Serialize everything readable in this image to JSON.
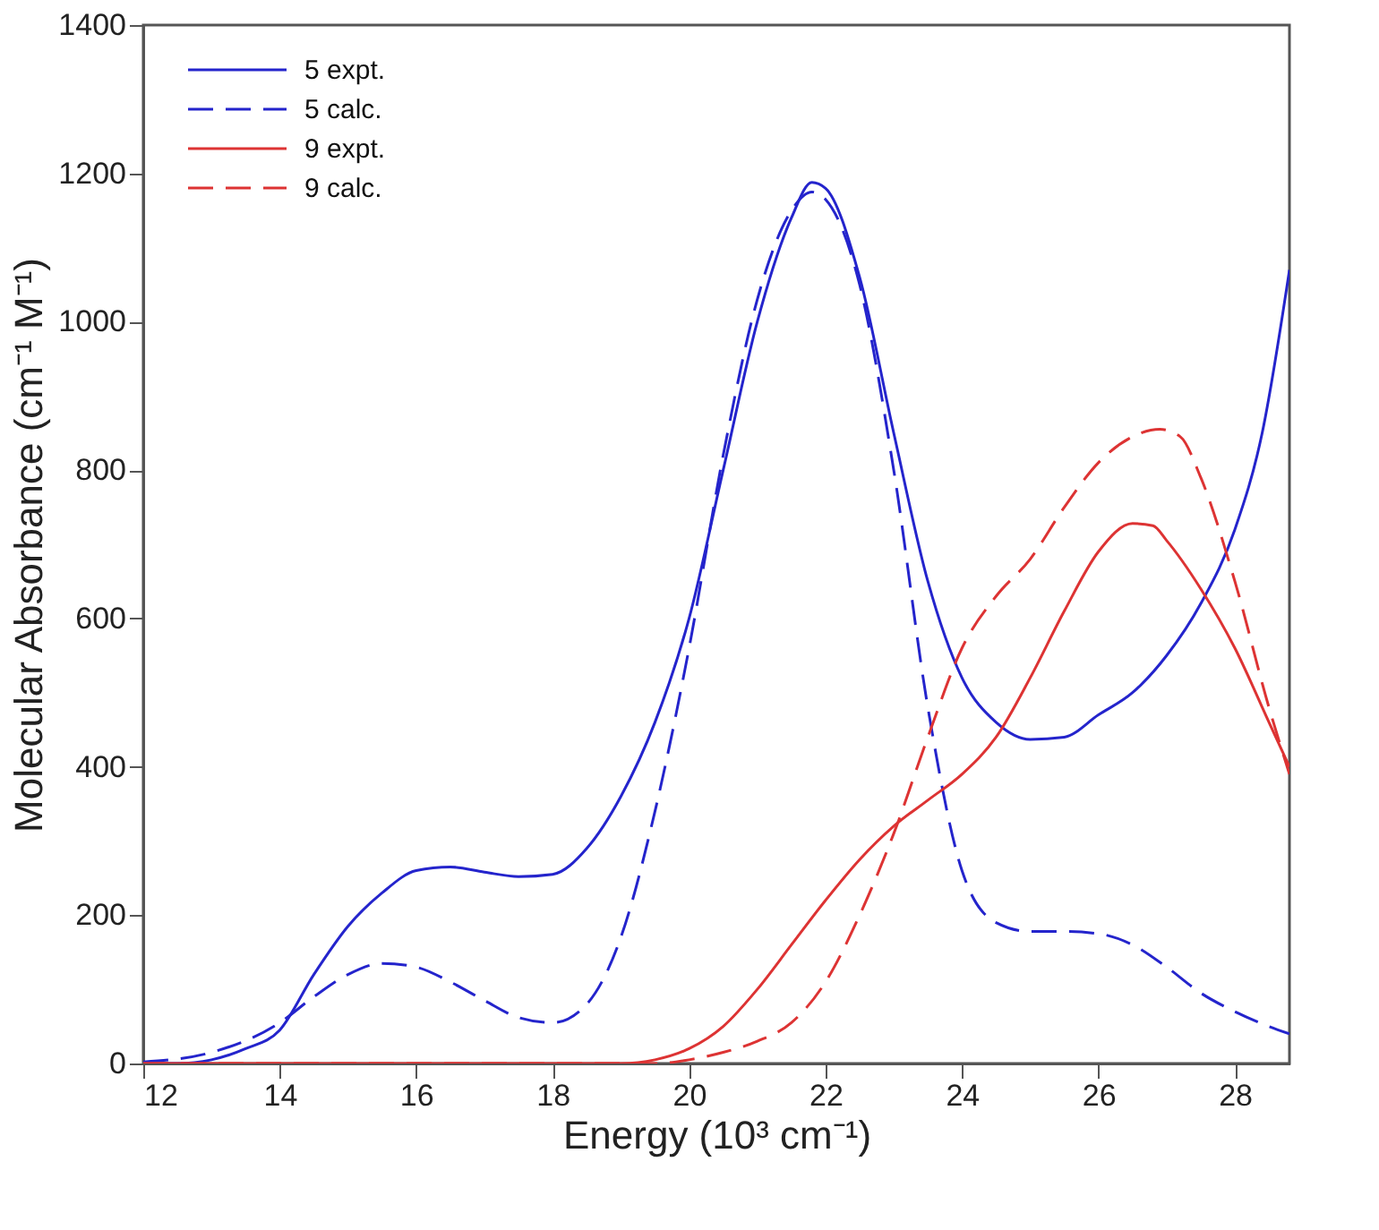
{
  "chart_data": {
    "type": "line",
    "xlabel": "Energy (10³ cm⁻¹)",
    "ylabel": "Molecular Absorbance (cm⁻¹ M⁻¹)",
    "xlim": [
      12,
      28.8
    ],
    "xticks": [
      12,
      14,
      16,
      18,
      20,
      22,
      24,
      26,
      28
    ],
    "ylim": [
      0,
      1400
    ],
    "yticks": [
      0,
      200,
      400,
      600,
      800,
      1000,
      1200,
      1400
    ],
    "grid": false,
    "legend": "top left",
    "marker": "none",
    "series": [
      {
        "name": "5 expt.",
        "color": "#2424cc",
        "line_style": "solid",
        "x": [
          12,
          12.5,
          13,
          13.5,
          14,
          14.5,
          15,
          15.5,
          16,
          16.5,
          17,
          17.5,
          18,
          18.5,
          19,
          19.5,
          20,
          20.5,
          21,
          21.5,
          21.8,
          22,
          22.5,
          23,
          23.5,
          24,
          24.5,
          25,
          25.5,
          26,
          26.5,
          27,
          27.5,
          28,
          28.4,
          28.8
        ],
        "values": [
          0,
          0,
          5,
          20,
          45,
          120,
          185,
          230,
          260,
          265,
          258,
          252,
          255,
          290,
          360,
          460,
          600,
          800,
          1000,
          1140,
          1188,
          1180,
          1060,
          850,
          650,
          520,
          460,
          437,
          440,
          470,
          500,
          550,
          620,
          720,
          850,
          1070
        ]
      },
      {
        "name": "5 calc.",
        "color": "#2424cc",
        "line_style": "dashed",
        "x": [
          12,
          13,
          14,
          14.5,
          15,
          15.5,
          16,
          16.5,
          17,
          17.5,
          18,
          18.5,
          19,
          19.5,
          20,
          20.5,
          21,
          21.5,
          21.8,
          22,
          22.5,
          23,
          23.5,
          24,
          24.5,
          25,
          25.5,
          26,
          26.5,
          27,
          27.5,
          28,
          28.5,
          28.8
        ],
        "values": [
          2,
          15,
          55,
          90,
          120,
          135,
          130,
          110,
          85,
          62,
          55,
          80,
          170,
          340,
          560,
          820,
          1030,
          1150,
          1175,
          1165,
          1050,
          800,
          480,
          260,
          190,
          178,
          178,
          175,
          160,
          130,
          95,
          70,
          50,
          40
        ]
      },
      {
        "name": "9 expt.",
        "color": "#dd3333",
        "line_style": "solid",
        "x": [
          12,
          19,
          19.5,
          20,
          20.5,
          21,
          21.5,
          22,
          22.5,
          23,
          23.5,
          24,
          24.5,
          25,
          25.5,
          26,
          26.5,
          26.8,
          27,
          27.5,
          28,
          28.5,
          28.8
        ],
        "values": [
          0,
          0,
          5,
          20,
          50,
          100,
          160,
          220,
          275,
          320,
          355,
          390,
          440,
          520,
          610,
          690,
          728,
          725,
          705,
          640,
          560,
          460,
          400
        ]
      },
      {
        "name": "9 calc.",
        "color": "#dd3333",
        "line_style": "dashed",
        "x": [
          12,
          19.5,
          20,
          20.5,
          21,
          21.5,
          22,
          22.5,
          23,
          23.5,
          24,
          24.5,
          25,
          25.5,
          26,
          26.5,
          26.9,
          27.2,
          27.5,
          28,
          28.5,
          28.8
        ],
        "values": [
          0,
          0,
          5,
          15,
          30,
          55,
          110,
          200,
          310,
          440,
          560,
          630,
          680,
          750,
          810,
          845,
          855,
          845,
          790,
          650,
          480,
          390
        ]
      }
    ]
  }
}
